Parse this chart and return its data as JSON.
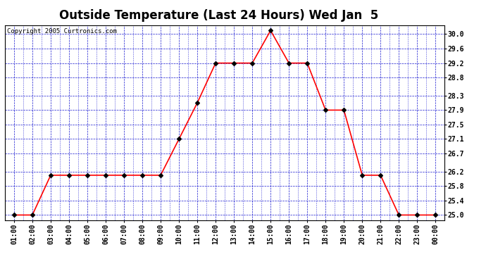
{
  "title": "Outside Temperature (Last 24 Hours) Wed Jan  5",
  "copyright": "Copyright 2005 Curtronics.com",
  "x_labels": [
    "01:00",
    "02:00",
    "03:00",
    "04:00",
    "05:00",
    "06:00",
    "07:00",
    "08:00",
    "09:00",
    "10:00",
    "11:00",
    "12:00",
    "13:00",
    "14:00",
    "15:00",
    "16:00",
    "17:00",
    "18:00",
    "19:00",
    "20:00",
    "21:00",
    "22:00",
    "23:00",
    "00:00"
  ],
  "x_values": [
    1,
    2,
    3,
    4,
    5,
    6,
    7,
    8,
    9,
    10,
    11,
    12,
    13,
    14,
    15,
    16,
    17,
    18,
    19,
    20,
    21,
    22,
    23,
    24
  ],
  "y_values": [
    25.0,
    25.0,
    26.1,
    26.1,
    26.1,
    26.1,
    26.1,
    26.1,
    26.1,
    27.1,
    28.1,
    29.2,
    29.2,
    29.2,
    30.1,
    29.2,
    29.2,
    27.9,
    27.9,
    26.1,
    26.1,
    25.0,
    25.0,
    25.0
  ],
  "ylim_min": 24.85,
  "ylim_max": 30.25,
  "yticks": [
    25.0,
    25.4,
    25.8,
    26.2,
    26.7,
    27.1,
    27.5,
    27.9,
    28.3,
    28.8,
    29.2,
    29.6,
    30.0
  ],
  "line_color": "red",
  "marker": "D",
  "marker_color": "black",
  "marker_size": 3,
  "grid_color": "#0000cc",
  "bg_color": "white",
  "plot_bg_color": "white",
  "title_fontsize": 12,
  "tick_fontsize": 7,
  "copyright_fontsize": 6.5
}
